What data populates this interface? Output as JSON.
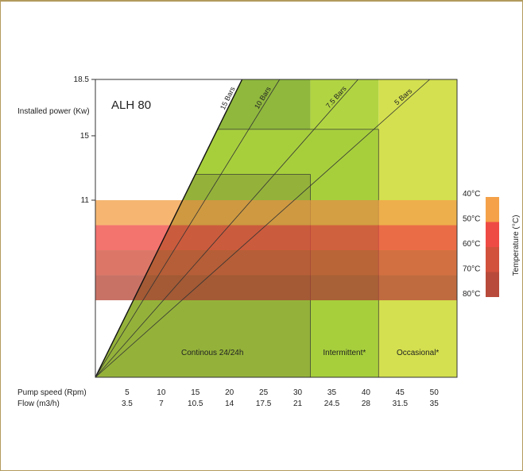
{
  "chart_data": {
    "type": "area",
    "title": "ALH 80",
    "ylabel": "Installed power (Kw)",
    "y_ticks": [
      "18.5",
      "15",
      "11"
    ],
    "x_rows": [
      {
        "label": "Pump speed (Rpm)",
        "values": [
          "5",
          "10",
          "15",
          "20",
          "25",
          "30",
          "35",
          "40",
          "45",
          "50"
        ]
      },
      {
        "label": "Flow (m3/h)",
        "values": [
          "3.5",
          "7",
          "10.5",
          "14",
          "17.5",
          "21",
          "24.5",
          "28",
          "31.5",
          "35"
        ]
      }
    ],
    "pump_speed_range": [
      0,
      53
    ],
    "power_range": [
      0,
      18.5
    ],
    "pressure_lines": [
      {
        "label": "15 Bars",
        "end_speed": 21.5
      },
      {
        "label": "10 Bars",
        "end_speed": 27
      },
      {
        "label": "7.5 Bars",
        "end_speed": 38.5
      },
      {
        "label": "5 Bars",
        "end_speed": 49
      }
    ],
    "zones": [
      {
        "label": "Occasional*",
        "speed_range": [
          41.5,
          53
        ],
        "color": "#d4e04f"
      },
      {
        "label": "Intermittent*",
        "speed_range": [
          31.5,
          41.5
        ],
        "color": "#b1d542"
      },
      {
        "label": "Continous 24/24h",
        "speed_range": [
          0,
          31.5
        ],
        "color": "#8fb83d"
      }
    ],
    "power_boxes": [
      {
        "speed_range": [
          0,
          41.5
        ],
        "max_power": 15.4
      },
      {
        "speed_range": [
          0,
          31.5
        ],
        "max_power": 12.6
      }
    ],
    "temperature_bands": [
      {
        "label": "40°C",
        "color": "#f4a14a"
      },
      {
        "label": "50°C",
        "color": "#ef4b45"
      },
      {
        "label": "60°C",
        "color": "#d2513d"
      },
      {
        "label": "70°C",
        "color": "#b84a3b"
      },
      {
        "label": "80°C",
        "color": ""
      }
    ],
    "temperature_axis_label": "Temperature (°C)"
  }
}
